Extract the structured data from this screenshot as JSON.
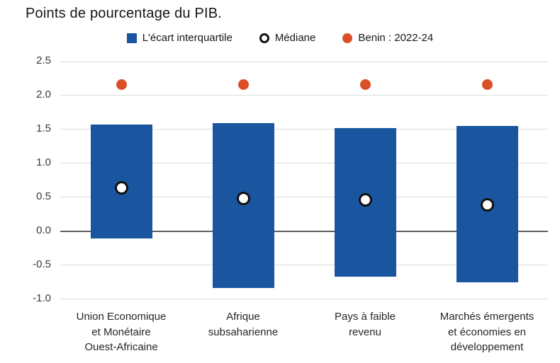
{
  "title": "Points de pourcentage du PIB.",
  "legend": {
    "items": [
      {
        "label": "L'écart interquartile",
        "marker": "square-icon",
        "color": "#1A56A0"
      },
      {
        "label": "Médiane",
        "marker": "open-circle-icon",
        "fill": "#FFFFFF",
        "stroke": "#111111"
      },
      {
        "label": "Benin : 2022-24",
        "marker": "dot-icon",
        "color": "#DA4F28"
      }
    ]
  },
  "chart_data": {
    "type": "bar",
    "subtype": "floating-range-bars-with-point-markers",
    "title": "Points de pourcentage du PIB.",
    "categories": [
      "Union Economique et Monétaire Ouest-Africaine",
      "Afrique subsaharienne",
      "Pays à faible revenu",
      "Marchés émergents et économies en développement"
    ],
    "category_label_lines": [
      [
        "Union Economique",
        "et Monétaire",
        "Ouest-Africaine"
      ],
      [
        "Afrique",
        "subsaharienne"
      ],
      [
        "Pays à faible",
        "revenu"
      ],
      [
        "Marchés émergents",
        "et économies en",
        "développement"
      ]
    ],
    "series": [
      {
        "name": "L'écart interquartile",
        "type": "range-bar",
        "high": [
          1.57,
          1.59,
          1.52,
          1.55
        ],
        "low": [
          -0.11,
          -0.84,
          -0.67,
          -0.75
        ]
      },
      {
        "name": "Médiane",
        "type": "point",
        "values": [
          0.64,
          0.48,
          0.46,
          0.39
        ]
      },
      {
        "name": "Benin : 2022-24",
        "type": "point",
        "values": [
          2.16,
          2.16,
          2.16,
          2.16
        ]
      }
    ],
    "ylim": [
      -1.0,
      2.5
    ],
    "yticks": [
      2.5,
      2.0,
      1.5,
      1.0,
      0.5,
      0.0,
      -0.5,
      -1.0
    ],
    "ytick_labels": [
      "2.5",
      "2.0",
      "1.5",
      "1.0",
      "0.5",
      "0.0",
      "-0.5",
      "-1.0"
    ],
    "xlabel": "",
    "ylabel": "",
    "grid": true,
    "legend_position": "top",
    "colors": {
      "bar": "#1A56A0",
      "median_fill": "#FFFFFF",
      "median_stroke": "#111111",
      "benin": "#DA4F28",
      "gridline": "#DCDCDC",
      "zeroline": "#5F5F5F"
    }
  }
}
